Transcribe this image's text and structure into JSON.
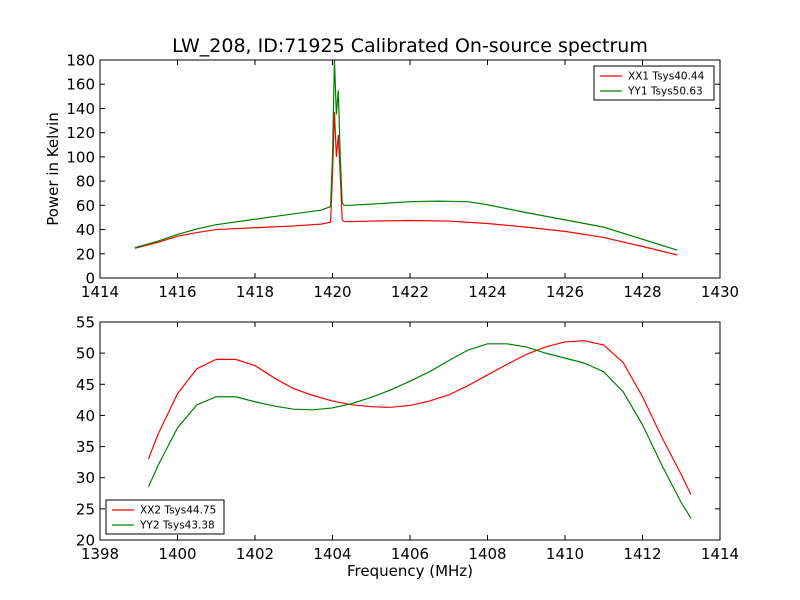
{
  "title": "LW_208, ID:71925 Calibrated On-source spectrum",
  "chart_data": [
    {
      "type": "line",
      "ylabel": "Power in Kelvin",
      "xlabel": "",
      "xlim": [
        1414,
        1430
      ],
      "ylim": [
        0,
        180
      ],
      "xticks": [
        1414,
        1416,
        1418,
        1420,
        1422,
        1424,
        1426,
        1428,
        1430
      ],
      "yticks": [
        0,
        20,
        40,
        60,
        80,
        100,
        120,
        140,
        160,
        180
      ],
      "legend_position": "top-right",
      "series": [
        {
          "name": "XX1 Tsys40.44",
          "color": "#ff0000",
          "x": [
            1414.9,
            1415.5,
            1416.0,
            1416.5,
            1417.0,
            1418.0,
            1419.0,
            1419.7,
            1419.95,
            1420.0,
            1420.05,
            1420.1,
            1420.15,
            1420.2,
            1420.25,
            1420.3,
            1420.4,
            1421.0,
            1422.0,
            1423.0,
            1424.0,
            1425.0,
            1426.0,
            1427.0,
            1428.0,
            1428.9
          ],
          "y": [
            24.5,
            29.5,
            34.5,
            37.5,
            40,
            41.5,
            43,
            44.5,
            46,
            85,
            137,
            100,
            118,
            85,
            48,
            46.5,
            46.5,
            47,
            47.5,
            47,
            45,
            42,
            38.5,
            33.5,
            26,
            19
          ]
        },
        {
          "name": "YY1 Tsys50.63",
          "color": "#008000",
          "x": [
            1414.9,
            1415.5,
            1416.0,
            1416.5,
            1417.0,
            1418.0,
            1419.0,
            1419.7,
            1419.95,
            1420.0,
            1420.05,
            1420.1,
            1420.15,
            1420.2,
            1420.25,
            1420.3,
            1420.4,
            1421.0,
            1422.0,
            1422.7,
            1423.5,
            1424.0,
            1425.0,
            1426.0,
            1427.0,
            1428.0,
            1428.9
          ],
          "y": [
            25,
            30.5,
            36,
            40.5,
            44,
            48.5,
            53,
            56,
            59,
            100,
            180,
            135,
            155,
            100,
            62,
            60,
            60,
            61,
            63,
            63.5,
            63,
            60.5,
            54,
            48,
            42,
            32,
            23
          ]
        }
      ]
    },
    {
      "type": "line",
      "xlabel": "Frequency (MHz)",
      "ylabel": "",
      "xlim": [
        1398,
        1414
      ],
      "ylim": [
        20,
        55
      ],
      "xticks": [
        1398,
        1400,
        1402,
        1404,
        1406,
        1408,
        1410,
        1412,
        1414
      ],
      "yticks": [
        20,
        25,
        30,
        35,
        40,
        45,
        50,
        55
      ],
      "legend_position": "bottom-left",
      "series": [
        {
          "name": "XX2 Tsys44.75",
          "color": "#ff0000",
          "x": [
            1399.25,
            1399.5,
            1400.0,
            1400.5,
            1401.0,
            1401.5,
            1402.0,
            1402.5,
            1403.0,
            1403.5,
            1404.0,
            1404.5,
            1405.0,
            1405.5,
            1406.0,
            1406.5,
            1407.0,
            1407.5,
            1408.0,
            1408.5,
            1409.0,
            1409.5,
            1410.0,
            1410.5,
            1411.0,
            1411.5,
            1412.0,
            1412.5,
            1413.0,
            1413.25
          ],
          "y": [
            33,
            37,
            43.5,
            47.5,
            49,
            49,
            48,
            46,
            44.3,
            43.2,
            42.3,
            41.7,
            41.4,
            41.3,
            41.6,
            42.3,
            43.3,
            44.8,
            46.5,
            48.2,
            49.8,
            51,
            51.8,
            52,
            51.3,
            48.5,
            43,
            36.5,
            30.5,
            27.3
          ]
        },
        {
          "name": "YY2 Tsys43.38",
          "color": "#008000",
          "x": [
            1399.25,
            1399.5,
            1400.0,
            1400.5,
            1401.0,
            1401.5,
            1402.0,
            1402.5,
            1403.0,
            1403.5,
            1404.0,
            1404.5,
            1405.0,
            1405.5,
            1406.0,
            1406.5,
            1407.0,
            1407.5,
            1408.0,
            1408.5,
            1409.0,
            1409.5,
            1410.0,
            1410.5,
            1411.0,
            1411.5,
            1412.0,
            1412.5,
            1413.0,
            1413.25
          ],
          "y": [
            28.5,
            32,
            38,
            41.7,
            43,
            43,
            42.2,
            41.5,
            41,
            40.9,
            41.2,
            41.9,
            42.9,
            44.1,
            45.5,
            47,
            48.8,
            50.5,
            51.5,
            51.5,
            51,
            50,
            49.2,
            48.4,
            47,
            43.8,
            38.5,
            32,
            26,
            23.5
          ]
        }
      ]
    }
  ]
}
